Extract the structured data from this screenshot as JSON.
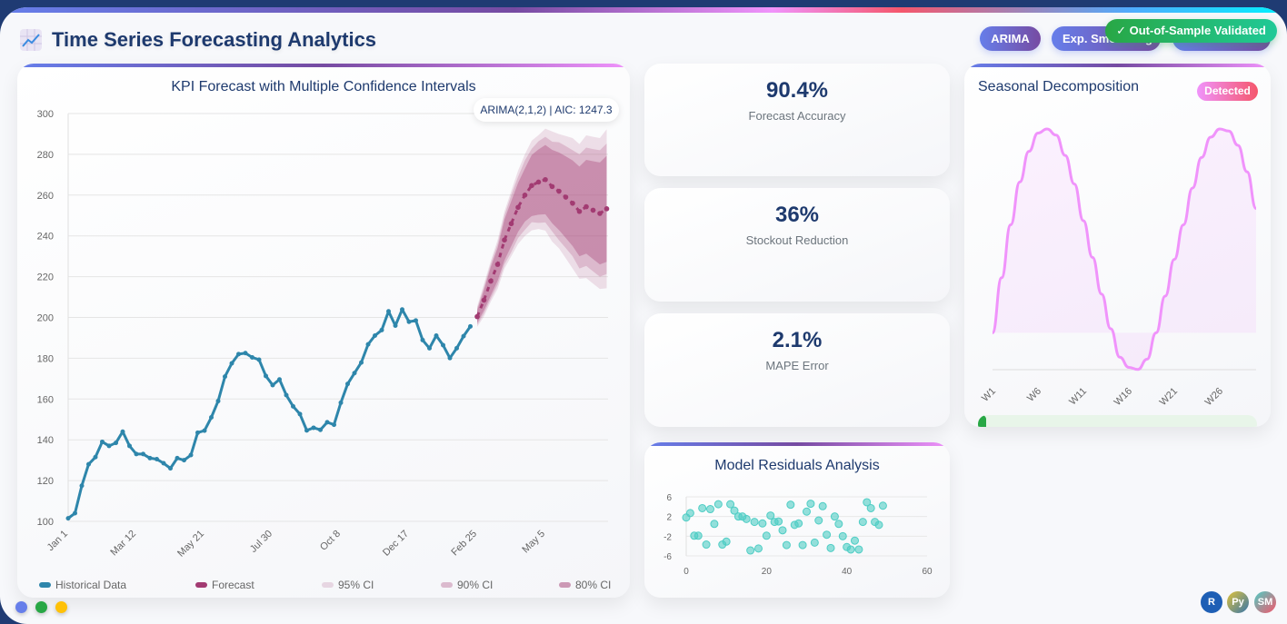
{
  "header": {
    "title": "Time Series Forecasting Analytics",
    "icon": "chart-increasing-icon",
    "badges": [
      {
        "label": "ARIMA"
      },
      {
        "label": "Exp. Smoothing"
      },
      {
        "label": ""
      }
    ],
    "validated_label": "✓ Out-of-Sample Validated"
  },
  "colors": {
    "historical": "#2e86ab",
    "forecast": "#a23b72",
    "seasonal": "#f093fb",
    "residual": "#4ecdc4",
    "primary_text": "#1e3a6e"
  },
  "main_chart": {
    "annotation": "ARIMA(2,1,2) | AIC: 1247.3",
    "legend": [
      "Historical Data",
      "Forecast",
      "95% CI",
      "90% CI",
      "80% CI"
    ]
  },
  "kpis": [
    {
      "value": "90.4%",
      "label": "Forecast Accuracy"
    },
    {
      "value": "36%",
      "label": "Stockout Reduction"
    },
    {
      "value": "2.1%",
      "label": "MAPE Error"
    }
  ],
  "seasonal": {
    "title": "Seasonal Decomposition",
    "badge": "Detected",
    "progress_percent": 3
  },
  "residuals": {
    "title": "Model Residuals Analysis"
  },
  "footer": {
    "status_dots": [
      "#667eea",
      "#28a745",
      "#ffc107"
    ],
    "tech_badges": [
      "R",
      "Py",
      "SM"
    ]
  },
  "chart_data": [
    {
      "type": "line",
      "title": "KPI Forecast with Multiple Confidence Intervals",
      "x_tick_labels": [
        "Jan 1",
        "Mar 12",
        "May 21",
        "Jul 30",
        "Oct 8",
        "Dec 17",
        "Feb 25",
        "May 5"
      ],
      "x_tick_every_points": 10,
      "ylim": [
        100,
        300
      ],
      "y_ticks": [
        100,
        120,
        140,
        160,
        180,
        200,
        220,
        240,
        260,
        280,
        300
      ],
      "grid": true,
      "legend_position": "bottom",
      "series": [
        {
          "name": "Historical Data",
          "start_index": 0,
          "values": [
            101.5,
            104,
            117.5,
            128,
            131.5,
            139,
            137,
            138.5,
            144,
            137,
            133,
            133,
            131,
            130.5,
            128.5,
            126,
            131,
            130,
            132.5,
            143.5,
            144.5,
            151,
            159,
            171,
            177.5,
            182,
            182.5,
            180.4,
            179.3,
            171.3,
            166.8,
            169.6,
            161.9,
            156.4,
            152.6,
            144.6,
            145.9,
            144.9,
            148.6,
            147.4,
            158.2,
            167.4,
            172.7,
            177.9,
            186.8,
            191.1,
            193.8,
            203,
            196,
            203.9,
            197.9,
            198.5,
            188.9,
            184.9,
            191.1,
            186.4,
            180.1,
            184.9,
            190.8,
            195.6
          ]
        },
        {
          "name": "Forecast",
          "start_index": 60,
          "values": [
            200.4,
            208.5,
            217.8,
            226,
            238,
            246,
            254,
            260,
            264.7,
            266.4,
            267.6,
            264.2,
            261.9,
            259,
            256,
            252,
            254.3,
            252.6,
            251,
            253.3
          ]
        }
      ],
      "confidence_intervals": [
        {
          "name": "95% CI",
          "halfwidth": [
            5,
            8,
            10,
            12,
            14,
            16,
            18,
            20,
            22,
            23,
            25,
            27,
            28,
            30,
            32,
            33,
            35,
            36,
            37,
            39
          ]
        },
        {
          "name": "90% CI",
          "halfwidth": [
            4,
            6.5,
            8.5,
            10,
            12,
            14,
            15,
            17,
            18,
            20,
            21,
            22,
            24,
            25,
            26,
            28,
            29,
            30,
            31,
            32
          ]
        },
        {
          "name": "80% CI",
          "halfwidth": [
            3,
            5,
            7,
            8,
            10,
            11,
            12,
            13,
            15,
            16,
            17,
            18,
            19,
            20,
            21,
            22,
            23,
            24,
            25,
            26
          ]
        }
      ]
    },
    {
      "type": "area",
      "title": "Seasonal Decomposition",
      "categories_tick_labels": [
        "W1",
        "W6",
        "W11",
        "W16",
        "W21",
        "W26"
      ],
      "values": [
        0,
        2.7,
        5.3,
        7.4,
        8.9,
        9.8,
        10,
        9.7,
        8.7,
        7.3,
        5.5,
        3.7,
        1.9,
        0.2,
        -1.2,
        -1.7,
        -1.8,
        -1.3,
        0,
        1.8,
        3.6,
        5.3,
        7.1,
        8.6,
        9.6,
        10,
        9.9,
        9.2,
        7.9,
        6.1
      ],
      "fill": "origin",
      "y_axis_visible": false
    },
    {
      "type": "scatter",
      "title": "Model Residuals Analysis",
      "xlim": [
        0,
        60
      ],
      "x_ticks": [
        0,
        20,
        40,
        60
      ],
      "ylim": [
        -6,
        6
      ],
      "y_ticks": [
        6,
        2,
        -2,
        -6
      ],
      "x": [
        0,
        1,
        2,
        3,
        4,
        5,
        6,
        7,
        8,
        9,
        10,
        11,
        12,
        13,
        14,
        15,
        16,
        17,
        18,
        19,
        20,
        21,
        22,
        23,
        24,
        25,
        26,
        27,
        28,
        29,
        30,
        31,
        32,
        33,
        34,
        35,
        36,
        37,
        38,
        39,
        40,
        41,
        42,
        43,
        44,
        45,
        46,
        47,
        48,
        49
      ],
      "y": [
        1.8,
        2.7,
        -1.9,
        -1.9,
        3.7,
        -3.7,
        3.5,
        0.5,
        4.5,
        -3.7,
        -3.1,
        4.5,
        3.2,
        2,
        2,
        1.5,
        -4.9,
        0.9,
        -4.5,
        0.6,
        -1.9,
        2.2,
        0.9,
        1,
        -0.8,
        -3.8,
        4.4,
        0.3,
        0.6,
        -3.8,
        3,
        4.6,
        -3.3,
        1.2,
        4.1,
        -1.7,
        -4.4,
        2,
        0.5,
        -2,
        -4.2,
        -4.7,
        -2.9,
        -4.7,
        0.9,
        4.9,
        3.7,
        0.9,
        0.3,
        4.2
      ]
    }
  ]
}
